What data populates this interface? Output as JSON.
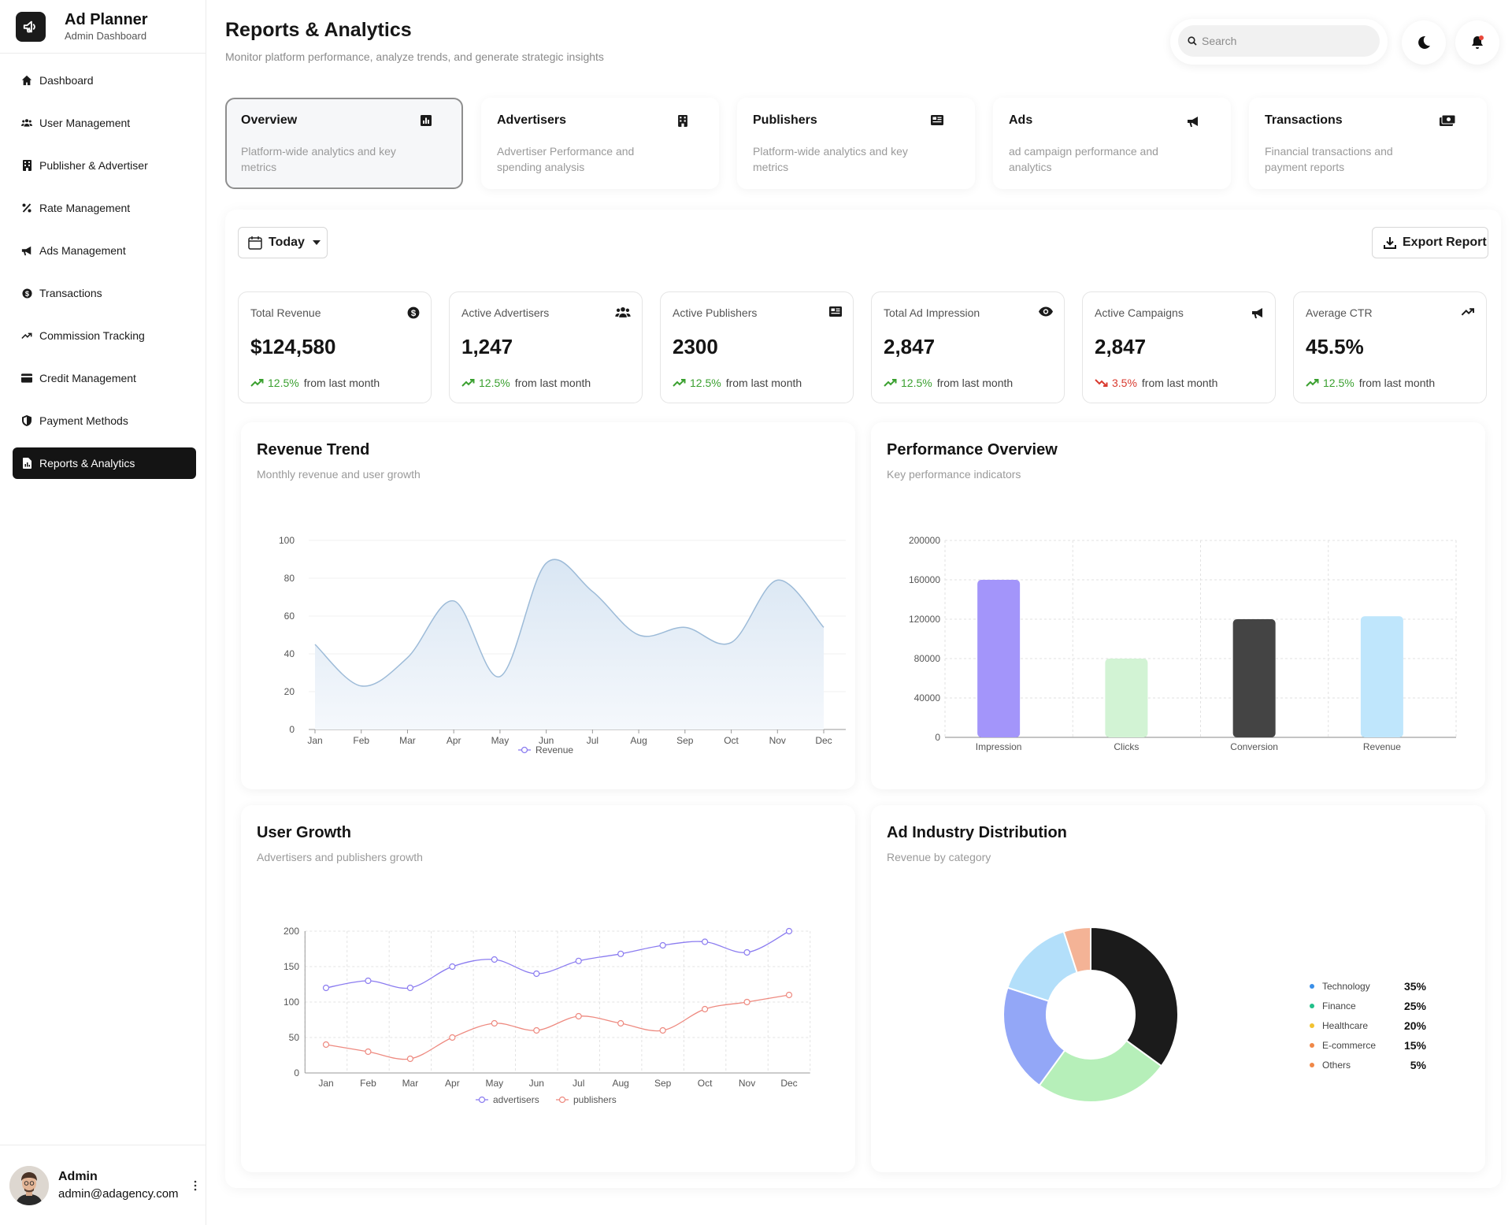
{
  "brand": {
    "title": "Ad Planner",
    "subtitle": "Admin Dashboard",
    "icon": "megaphone-icon"
  },
  "nav": [
    {
      "label": "Dashboard",
      "icon": "home-icon"
    },
    {
      "label": "User Management",
      "icon": "users-icon"
    },
    {
      "label": "Publisher & Advertiser",
      "icon": "building-icon"
    },
    {
      "label": "Rate Management",
      "icon": "percent-icon"
    },
    {
      "label": "Ads Management",
      "icon": "megaphone-icon"
    },
    {
      "label": "Transactions",
      "icon": "dollar-icon"
    },
    {
      "label": "Commission Tracking",
      "icon": "trend-icon"
    },
    {
      "label": "Credit Management",
      "icon": "credit-card-icon"
    },
    {
      "label": "Payment Methods",
      "icon": "shield-icon"
    },
    {
      "label": "Reports & Analytics",
      "icon": "report-icon",
      "active": true
    }
  ],
  "user": {
    "name": "Admin",
    "email": "admin@adagency.com"
  },
  "header": {
    "title": "Reports & Analytics",
    "subtitle": "Monitor platform performance, analyze trends, and generate strategic insights",
    "search_placeholder": "Search"
  },
  "report_tabs": [
    {
      "title": "Overview",
      "desc": "Platform-wide analytics and key metrics",
      "icon": "chart-square-icon",
      "active": true
    },
    {
      "title": "Advertisers",
      "desc": "Advertiser Performance and spending analysis",
      "icon": "building-icon"
    },
    {
      "title": "Publishers",
      "desc": "Platform-wide analytics and key metrics",
      "icon": "newspaper-icon"
    },
    {
      "title": "Ads",
      "desc": "ad campaign performance and analytics",
      "icon": "megaphone-icon"
    },
    {
      "title": "Transactions",
      "desc": "Financial transactions and payment reports",
      "icon": "money-icon"
    }
  ],
  "toolbar": {
    "date_label": "Today",
    "export_label": "Export Report"
  },
  "stats": [
    {
      "label": "Total Revenue",
      "value": "$124,580",
      "pct": "12.5%",
      "suffix": "from last month",
      "trend": "up",
      "icon": "dollar-icon"
    },
    {
      "label": "Active Advertisers",
      "value": "1,247",
      "pct": "12.5%",
      "suffix": "from last month",
      "trend": "up",
      "icon": "users-icon"
    },
    {
      "label": "Active Publishers",
      "value": "2300",
      "pct": "12.5%",
      "suffix": "from last month",
      "trend": "up",
      "icon": "newspaper-icon"
    },
    {
      "label": "Total Ad Impression",
      "value": "2,847",
      "pct": "12.5%",
      "suffix": "from last month",
      "trend": "up",
      "icon": "eye-icon"
    },
    {
      "label": "Active Campaigns",
      "value": "2,847",
      "pct": "3.5%",
      "suffix": "from last month",
      "trend": "down",
      "icon": "megaphone-icon"
    },
    {
      "label": "Average CTR",
      "value": "45.5%",
      "pct": "12.5%",
      "suffix": "from last month",
      "trend": "up",
      "icon": "trend-icon"
    }
  ],
  "colors": {
    "up": "#3aa02f",
    "down": "#d93a2f",
    "revenue_line": "#9dbbd8",
    "adv_line": "#8b7cf0",
    "pub_line": "#ee8a80"
  },
  "cards": {
    "revenue": {
      "title": "Revenue Trend",
      "subtitle": "Monthly revenue and user growth"
    },
    "performance": {
      "title": "Performance Overview",
      "subtitle": "Key performance indicators"
    },
    "growth": {
      "title": "User Growth",
      "subtitle": "Advertisers and publishers growth"
    },
    "industry": {
      "title": "Ad Industry Distribution",
      "subtitle": "Revenue by category"
    }
  },
  "chart_data": [
    {
      "id": "revenue-trend",
      "type": "area",
      "title": "Revenue Trend",
      "categories": [
        "Jan",
        "Feb",
        "Mar",
        "Apr",
        "May",
        "Jun",
        "Jul",
        "Aug",
        "Sep",
        "Oct",
        "Nov",
        "Dec"
      ],
      "series": [
        {
          "name": "Revenue",
          "values": [
            45,
            23,
            38,
            68,
            28,
            88,
            73,
            50,
            54,
            46,
            79,
            54
          ]
        }
      ],
      "ylim": [
        0,
        100
      ],
      "yticks": [
        0,
        20,
        40,
        60,
        80,
        100
      ],
      "legend": "bottom"
    },
    {
      "id": "performance-overview",
      "type": "bar",
      "title": "Performance Overview",
      "categories": [
        "Impression",
        "Clicks",
        "Conversion",
        "Revenue"
      ],
      "values": [
        160000,
        80000,
        120000,
        123000
      ],
      "bar_colors": [
        "#a395fa",
        "#d2f3d4",
        "#444444",
        "#bfe6fc"
      ],
      "ylim": [
        0,
        200000
      ],
      "yticks": [
        0,
        40000,
        80000,
        120000,
        160000,
        200000
      ]
    },
    {
      "id": "user-growth",
      "type": "line",
      "title": "User Growth",
      "categories": [
        "Jan",
        "Feb",
        "Mar",
        "Apr",
        "May",
        "Jun",
        "Jul",
        "Aug",
        "Sep",
        "Oct",
        "Nov",
        "Dec"
      ],
      "series": [
        {
          "name": "advertisers",
          "values": [
            120,
            130,
            120,
            150,
            160,
            140,
            158,
            168,
            180,
            185,
            170,
            200
          ]
        },
        {
          "name": "publishers",
          "values": [
            40,
            30,
            20,
            50,
            70,
            60,
            80,
            70,
            60,
            90,
            100,
            110
          ]
        }
      ],
      "ylim": [
        0,
        200
      ],
      "yticks": [
        0,
        50,
        100,
        150,
        200
      ],
      "legend": "bottom"
    },
    {
      "id": "ad-industry",
      "type": "pie",
      "title": "Ad Industry Distribution",
      "labels": [
        "Technology",
        "Finance",
        "Healthcare",
        "E-commerce",
        "Others"
      ],
      "values": [
        35,
        25,
        20,
        15,
        5
      ],
      "display": [
        "35%",
        "25%",
        "20%",
        "15%",
        "5%"
      ],
      "slice_colors": [
        "#1b1b1b",
        "#b6efb9",
        "#93a7f7",
        "#b3dffa",
        "#f4b396"
      ],
      "dot_colors": [
        "#3a8fe8",
        "#22c08a",
        "#f2c230",
        "#f08848",
        "#f08848"
      ],
      "legend": "right"
    }
  ]
}
